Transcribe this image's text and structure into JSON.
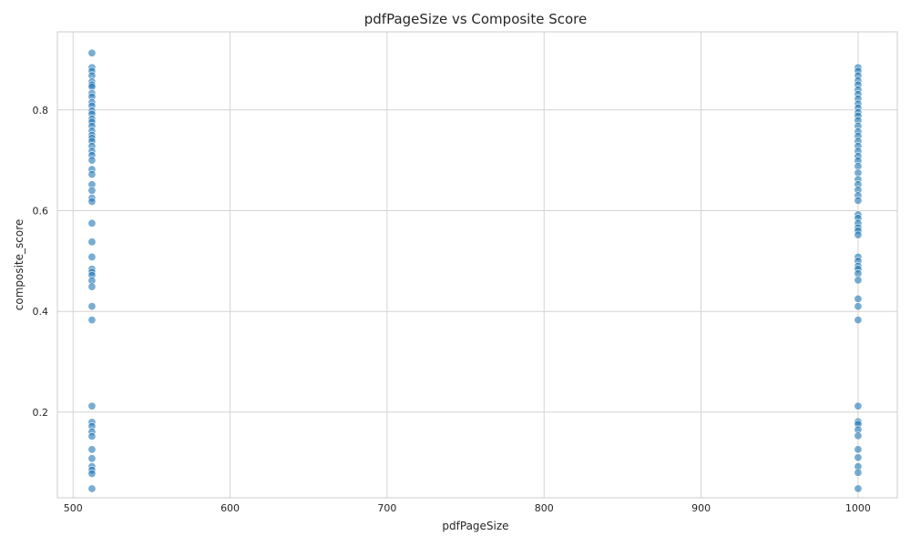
{
  "chart_data": {
    "type": "scatter",
    "title": "pdfPageSize vs Composite Score",
    "xlabel": "pdfPageSize",
    "ylabel": "composite_score",
    "xlim": [
      490,
      1025
    ],
    "ylim": [
      0.03,
      0.955
    ],
    "xticks": [
      500,
      600,
      700,
      800,
      900,
      1000
    ],
    "yticks": [
      0.2,
      0.4,
      0.6,
      0.8
    ],
    "grid": true,
    "marker_color": "#1f77b4",
    "marker_alpha": 0.6,
    "series": [
      {
        "points": [
          {
            "x": 512,
            "y": 0.913
          },
          {
            "x": 512,
            "y": 0.884
          },
          {
            "x": 512,
            "y": 0.877
          },
          {
            "x": 512,
            "y": 0.868
          },
          {
            "x": 512,
            "y": 0.856
          },
          {
            "x": 512,
            "y": 0.85
          },
          {
            "x": 512,
            "y": 0.846
          },
          {
            "x": 512,
            "y": 0.833
          },
          {
            "x": 512,
            "y": 0.826
          },
          {
            "x": 512,
            "y": 0.815
          },
          {
            "x": 512,
            "y": 0.808
          },
          {
            "x": 512,
            "y": 0.798
          },
          {
            "x": 512,
            "y": 0.792
          },
          {
            "x": 512,
            "y": 0.782
          },
          {
            "x": 512,
            "y": 0.776
          },
          {
            "x": 512,
            "y": 0.768
          },
          {
            "x": 512,
            "y": 0.758
          },
          {
            "x": 512,
            "y": 0.75
          },
          {
            "x": 512,
            "y": 0.744
          },
          {
            "x": 512,
            "y": 0.738
          },
          {
            "x": 512,
            "y": 0.728
          },
          {
            "x": 512,
            "y": 0.718
          },
          {
            "x": 512,
            "y": 0.71
          },
          {
            "x": 512,
            "y": 0.7
          },
          {
            "x": 512,
            "y": 0.682
          },
          {
            "x": 512,
            "y": 0.672
          },
          {
            "x": 512,
            "y": 0.652
          },
          {
            "x": 512,
            "y": 0.64
          },
          {
            "x": 512,
            "y": 0.625
          },
          {
            "x": 512,
            "y": 0.618
          },
          {
            "x": 512,
            "y": 0.575
          },
          {
            "x": 512,
            "y": 0.538
          },
          {
            "x": 512,
            "y": 0.508
          },
          {
            "x": 512,
            "y": 0.484
          },
          {
            "x": 512,
            "y": 0.478
          },
          {
            "x": 512,
            "y": 0.472
          },
          {
            "x": 512,
            "y": 0.461
          },
          {
            "x": 512,
            "y": 0.449
          },
          {
            "x": 512,
            "y": 0.41
          },
          {
            "x": 512,
            "y": 0.383
          },
          {
            "x": 512,
            "y": 0.212
          },
          {
            "x": 512,
            "y": 0.18
          },
          {
            "x": 512,
            "y": 0.172
          },
          {
            "x": 512,
            "y": 0.161
          },
          {
            "x": 512,
            "y": 0.152
          },
          {
            "x": 512,
            "y": 0.126
          },
          {
            "x": 512,
            "y": 0.108
          },
          {
            "x": 512,
            "y": 0.092
          },
          {
            "x": 512,
            "y": 0.085
          },
          {
            "x": 512,
            "y": 0.078
          },
          {
            "x": 512,
            "y": 0.048
          },
          {
            "x": 1000,
            "y": 0.884
          },
          {
            "x": 1000,
            "y": 0.877
          },
          {
            "x": 1000,
            "y": 0.868
          },
          {
            "x": 1000,
            "y": 0.858
          },
          {
            "x": 1000,
            "y": 0.85
          },
          {
            "x": 1000,
            "y": 0.84
          },
          {
            "x": 1000,
            "y": 0.831
          },
          {
            "x": 1000,
            "y": 0.822
          },
          {
            "x": 1000,
            "y": 0.812
          },
          {
            "x": 1000,
            "y": 0.804
          },
          {
            "x": 1000,
            "y": 0.795
          },
          {
            "x": 1000,
            "y": 0.788
          },
          {
            "x": 1000,
            "y": 0.779
          },
          {
            "x": 1000,
            "y": 0.768
          },
          {
            "x": 1000,
            "y": 0.757
          },
          {
            "x": 1000,
            "y": 0.748
          },
          {
            "x": 1000,
            "y": 0.738
          },
          {
            "x": 1000,
            "y": 0.728
          },
          {
            "x": 1000,
            "y": 0.718
          },
          {
            "x": 1000,
            "y": 0.708
          },
          {
            "x": 1000,
            "y": 0.699
          },
          {
            "x": 1000,
            "y": 0.688
          },
          {
            "x": 1000,
            "y": 0.675
          },
          {
            "x": 1000,
            "y": 0.662
          },
          {
            "x": 1000,
            "y": 0.652
          },
          {
            "x": 1000,
            "y": 0.641
          },
          {
            "x": 1000,
            "y": 0.63
          },
          {
            "x": 1000,
            "y": 0.62
          },
          {
            "x": 1000,
            "y": 0.592
          },
          {
            "x": 1000,
            "y": 0.585
          },
          {
            "x": 1000,
            "y": 0.575
          },
          {
            "x": 1000,
            "y": 0.566
          },
          {
            "x": 1000,
            "y": 0.56
          },
          {
            "x": 1000,
            "y": 0.552
          },
          {
            "x": 1000,
            "y": 0.508
          },
          {
            "x": 1000,
            "y": 0.5
          },
          {
            "x": 1000,
            "y": 0.49
          },
          {
            "x": 1000,
            "y": 0.484
          },
          {
            "x": 1000,
            "y": 0.475
          },
          {
            "x": 1000,
            "y": 0.462
          },
          {
            "x": 1000,
            "y": 0.425
          },
          {
            "x": 1000,
            "y": 0.41
          },
          {
            "x": 1000,
            "y": 0.383
          },
          {
            "x": 1000,
            "y": 0.212
          },
          {
            "x": 1000,
            "y": 0.181
          },
          {
            "x": 1000,
            "y": 0.176
          },
          {
            "x": 1000,
            "y": 0.165
          },
          {
            "x": 1000,
            "y": 0.153
          },
          {
            "x": 1000,
            "y": 0.126
          },
          {
            "x": 1000,
            "y": 0.11
          },
          {
            "x": 1000,
            "y": 0.092
          },
          {
            "x": 1000,
            "y": 0.08
          },
          {
            "x": 1000,
            "y": 0.048
          }
        ]
      }
    ]
  }
}
